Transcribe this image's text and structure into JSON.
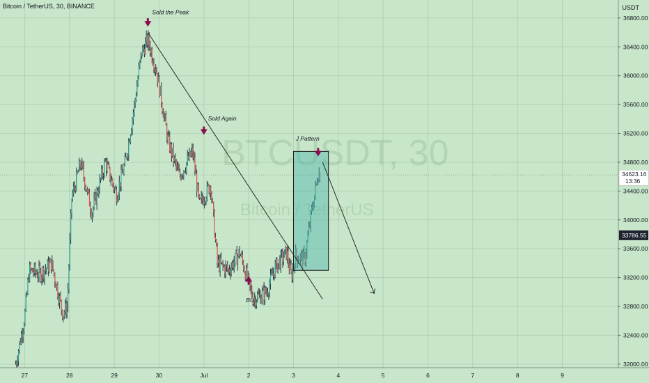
{
  "header": {
    "title": "Bitcoin / TetherUS, 30, BINANCE",
    "currency": "USDT"
  },
  "watermark": {
    "symbol": "BTCUSDT, 30",
    "name": "Bitcoin / TetherUS"
  },
  "colors": {
    "background": "#c8e6c9",
    "up": "#26a69a",
    "down": "#ef5350",
    "wick": "#2f3640",
    "marker": "#880e4f",
    "box_fill": "#4db6ac",
    "box_stroke": "#1b1b1b"
  },
  "chart_data": {
    "type": "candlestick",
    "title": "Bitcoin / TetherUS, 30, BINANCE",
    "ylim": [
      31950,
      37050
    ],
    "y_ticks": [
      32000,
      32400,
      32800,
      33200,
      33600,
      34000,
      34400,
      34800,
      35200,
      35600,
      36000,
      36400,
      36800
    ],
    "y_tick_labels": [
      "32000.00",
      "32400.00",
      "32800.00",
      "33200.00",
      "33600.00",
      "34000.00",
      "34400.00",
      "34800.00",
      "35200.00",
      "35600.00",
      "36000.00",
      "36400.00",
      "36800.00"
    ],
    "x_ticks": [
      0,
      1,
      2,
      3,
      4,
      5,
      6,
      7,
      8,
      9,
      10,
      11,
      12
    ],
    "x_tick_labels": [
      "27",
      "28",
      "29",
      "30",
      "Jul",
      "2",
      "3",
      "4",
      "5",
      "6",
      "7",
      "8",
      "9"
    ],
    "xlim": [
      -0.55,
      13.25
    ],
    "anchors": [
      [
        -0.2,
        32000
      ],
      [
        0.0,
        32650
      ],
      [
        0.1,
        33300
      ],
      [
        0.35,
        33250
      ],
      [
        0.6,
        33400
      ],
      [
        0.85,
        32700
      ],
      [
        0.95,
        32800
      ],
      [
        1.05,
        34300
      ],
      [
        1.25,
        34800
      ],
      [
        1.5,
        34100
      ],
      [
        1.8,
        34800
      ],
      [
        2.05,
        34350
      ],
      [
        2.25,
        34800
      ],
      [
        2.45,
        35600
      ],
      [
        2.6,
        36300
      ],
      [
        2.75,
        36500
      ],
      [
        2.95,
        36050
      ],
      [
        3.2,
        35100
      ],
      [
        3.45,
        34600
      ],
      [
        3.75,
        34950
      ],
      [
        3.9,
        34200
      ],
      [
        4.15,
        34500
      ],
      [
        4.3,
        33400
      ],
      [
        4.55,
        33300
      ],
      [
        4.8,
        33550
      ],
      [
        5.1,
        32900
      ],
      [
        5.4,
        33000
      ],
      [
        5.6,
        33350
      ],
      [
        5.85,
        33550
      ],
      [
        5.95,
        33200
      ],
      [
        6.05,
        33500
      ],
      [
        6.25,
        33450
      ],
      [
        6.4,
        34100
      ],
      [
        6.55,
        34650
      ],
      [
        6.6,
        34620
      ]
    ],
    "spread": 110,
    "current_price": {
      "value": 34623.16,
      "label": "34623.16",
      "countdown": "13:36"
    },
    "line_price": {
      "value": 33786.55,
      "label": "33786.55"
    },
    "annotations": [
      {
        "text": "Sold the Peak"
      },
      {
        "text": "Sold Again"
      },
      {
        "text": "J Pattern"
      },
      {
        "text": "BUY"
      }
    ]
  }
}
